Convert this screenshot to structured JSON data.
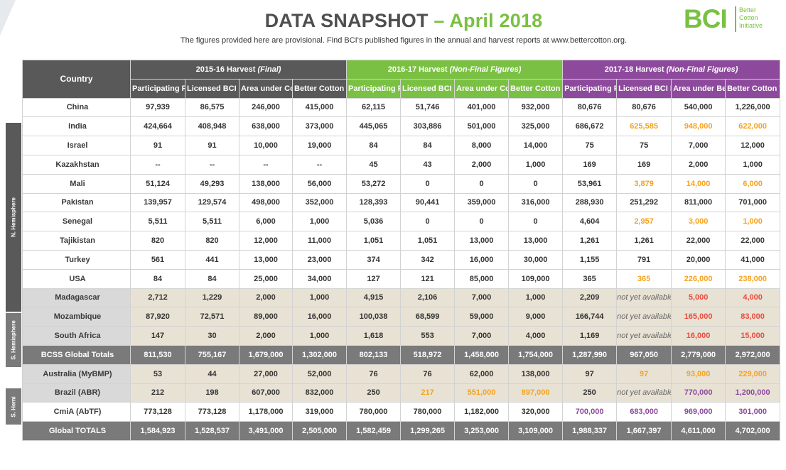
{
  "header": {
    "title_main": "DATA SNAPSHOT",
    "title_accent": "– April 2018",
    "subtitle": "The figures provided here are provisional. Find BCI's published figures in the annual and harvest reports at www.bettercotton.org.",
    "logo_mark": "BCI",
    "logo_text": [
      "Better",
      "Cotton",
      "Initiative"
    ]
  },
  "colors": {
    "green": "#7ac143",
    "purple": "#8d4a9c",
    "gray": "#595959",
    "orange": "#f6a21d",
    "red": "#e84c3d"
  },
  "sidebar": {
    "north": "N. Hemisphere",
    "south": "S. Hemisphere",
    "hemi": "S. Hemi"
  },
  "table": {
    "country_header": "Country",
    "groups": [
      {
        "label": "2015-16 Harvest ",
        "qualifier": "(Final)"
      },
      {
        "label": "2016-17 Harvest ",
        "qualifier": "(Non-Final Figures)"
      },
      {
        "label": "2017-18 Harvest ",
        "qualifier": "(Non-Final Figures)"
      }
    ],
    "col_headers": [
      [
        "Participating Farmers",
        "Licensed BCI Farmers",
        "Area under Cotton Cultivation [Ha]",
        "Better Cotton Volume  [MT lint]"
      ],
      [
        "Participating Farmers",
        "Licensed BCI Farmers",
        "Area under Cotton Cultivation [Ha]",
        "Better Cotton Volume  [MT lint]"
      ],
      [
        "Participating Farmers",
        "Licensed BCI Farmers",
        "Area under Better Cotton Cultivation [Ha]",
        "Better Cotton Volume  [MT lint]"
      ]
    ],
    "rows": [
      {
        "country": "China",
        "v": [
          "97,939",
          "86,575",
          "246,000",
          "415,000",
          "62,115",
          "51,746",
          "401,000",
          "932,000",
          "80,676",
          "80,676",
          "540,000",
          "1,226,000"
        ]
      },
      {
        "country": "India",
        "v": [
          "424,664",
          "408,948",
          "638,000",
          "373,000",
          "445,065",
          "303,886",
          "501,000",
          "325,000",
          "686,672",
          "625,585",
          "948,000",
          "622,000"
        ]
      },
      {
        "country": "Israel",
        "v": [
          "91",
          "91",
          "10,000",
          "19,000",
          "84",
          "84",
          "8,000",
          "14,000",
          "75",
          "75",
          "7,000",
          "12,000"
        ]
      },
      {
        "country": "Kazakhstan",
        "v": [
          "--",
          "--",
          "--",
          "--",
          "45",
          "43",
          "2,000",
          "1,000",
          "169",
          "169",
          "2,000",
          "1,000"
        ]
      },
      {
        "country": "Mali",
        "v": [
          "51,124",
          "49,293",
          "138,000",
          "56,000",
          "53,272",
          "0",
          "0",
          "0",
          "53,961",
          "3,879",
          "14,000",
          "6,000"
        ]
      },
      {
        "country": "Pakistan",
        "v": [
          "139,957",
          "129,574",
          "498,000",
          "352,000",
          "128,393",
          "90,441",
          "359,000",
          "316,000",
          "288,930",
          "251,292",
          "811,000",
          "701,000"
        ]
      },
      {
        "country": "Senegal",
        "v": [
          "5,511",
          "5,511",
          "6,000",
          "1,000",
          "5,036",
          "0",
          "0",
          "0",
          "4,604",
          "2,957",
          "3,000",
          "1,000"
        ]
      },
      {
        "country": "Tajikistan",
        "v": [
          "820",
          "820",
          "12,000",
          "11,000",
          "1,051",
          "1,051",
          "13,000",
          "13,000",
          "1,261",
          "1,261",
          "22,000",
          "22,000"
        ]
      },
      {
        "country": "Turkey",
        "v": [
          "561",
          "441",
          "13,000",
          "23,000",
          "374",
          "342",
          "16,000",
          "30,000",
          "1,155",
          "791",
          "20,000",
          "41,000"
        ]
      },
      {
        "country": "USA",
        "v": [
          "84",
          "84",
          "25,000",
          "34,000",
          "127",
          "121",
          "85,000",
          "109,000",
          "365",
          "365",
          "226,000",
          "238,000"
        ]
      },
      {
        "country": "Madagascar",
        "v": [
          "2,712",
          "1,229",
          "2,000",
          "1,000",
          "4,915",
          "2,106",
          "7,000",
          "1,000",
          "2,209",
          "not yet available",
          "5,000",
          "4,000"
        ]
      },
      {
        "country": "Mozambique",
        "v": [
          "87,920",
          "72,571",
          "89,000",
          "16,000",
          "100,038",
          "68,599",
          "59,000",
          "9,000",
          "166,744",
          "not yet available",
          "165,000",
          "83,000"
        ]
      },
      {
        "country": "South Africa",
        "v": [
          "147",
          "30",
          "2,000",
          "1,000",
          "1,618",
          "553",
          "7,000",
          "4,000",
          "1,169",
          "not yet available",
          "16,000",
          "15,000"
        ]
      },
      {
        "country": "BCSS Global Totals",
        "v": [
          "811,530",
          "755,167",
          "1,679,000",
          "1,302,000",
          "802,133",
          "518,972",
          "1,458,000",
          "1,754,000",
          "1,287,990",
          "967,050",
          "2,779,000",
          "2,972,000"
        ]
      },
      {
        "country": "Australia (MyBMP)",
        "v": [
          "53",
          "44",
          "27,000",
          "52,000",
          "76",
          "76",
          "62,000",
          "138,000",
          "97",
          "97",
          "93,000",
          "229,000"
        ]
      },
      {
        "country": "Brazil (ABR)",
        "v": [
          "212",
          "198",
          "607,000",
          "832,000",
          "250",
          "217",
          "551,000",
          "897,000",
          "250",
          "not yet available",
          "770,000",
          "1,200,000"
        ]
      },
      {
        "country": "CmiA (AbTF)",
        "v": [
          "773,128",
          "773,128",
          "1,178,000",
          "319,000",
          "780,000",
          "780,000",
          "1,182,000",
          "320,000",
          "700,000",
          "683,000",
          "969,000",
          "301,000"
        ]
      },
      {
        "country": "Global TOTALS",
        "v": [
          "1,584,923",
          "1,528,537",
          "3,491,000",
          "2,505,000",
          "1,582,459",
          "1,299,265",
          "3,253,000",
          "3,109,000",
          "1,988,337",
          "1,667,397",
          "4,611,000",
          "4,702,000"
        ]
      }
    ]
  }
}
